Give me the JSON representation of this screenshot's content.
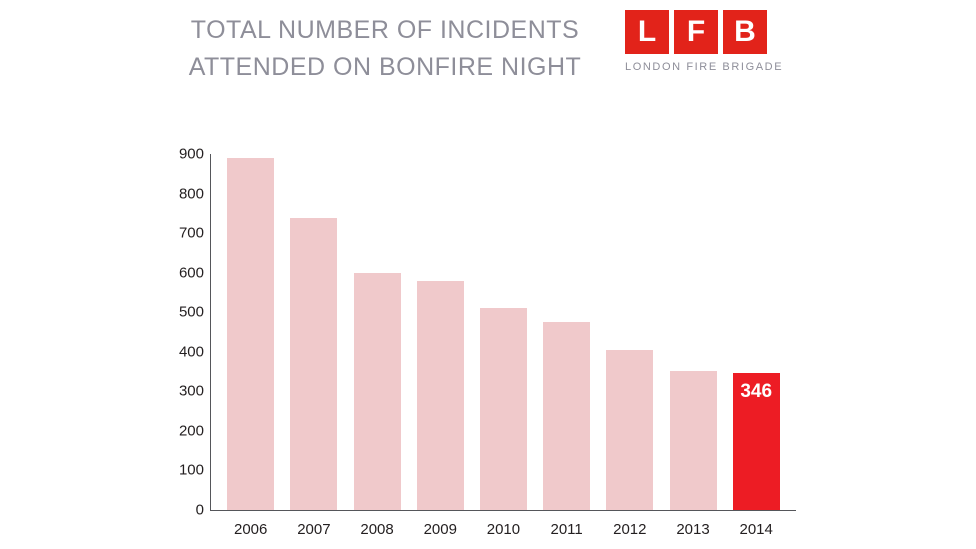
{
  "header": {
    "title_line1": "TOTAL NUMBER OF INCIDENTS",
    "title_line2": "ATTENDED ON BONFIRE NIGHT",
    "logo": {
      "letters": [
        "L",
        "F",
        "B"
      ],
      "caption": "LONDON FIRE BRIGADE",
      "color": "#e2231a"
    }
  },
  "chart_data": {
    "type": "bar",
    "title": "TOTAL NUMBER OF INCIDENTS ATTENDED ON BONFIRE NIGHT",
    "categories": [
      "2006",
      "2007",
      "2008",
      "2009",
      "2010",
      "2011",
      "2012",
      "2013",
      "2014"
    ],
    "values": [
      890,
      738,
      598,
      579,
      511,
      476,
      405,
      352,
      346
    ],
    "highlight_index": 8,
    "highlight_label": "346",
    "bar_color": "#f0c9cb",
    "highlight_color": "#ed1c24",
    "axis_color": "#55565a",
    "ylim": [
      0,
      900
    ],
    "yticks": [
      0,
      100,
      200,
      300,
      400,
      500,
      600,
      700,
      800,
      900
    ],
    "grid": false,
    "legend": false,
    "xlabel": "",
    "ylabel": ""
  }
}
